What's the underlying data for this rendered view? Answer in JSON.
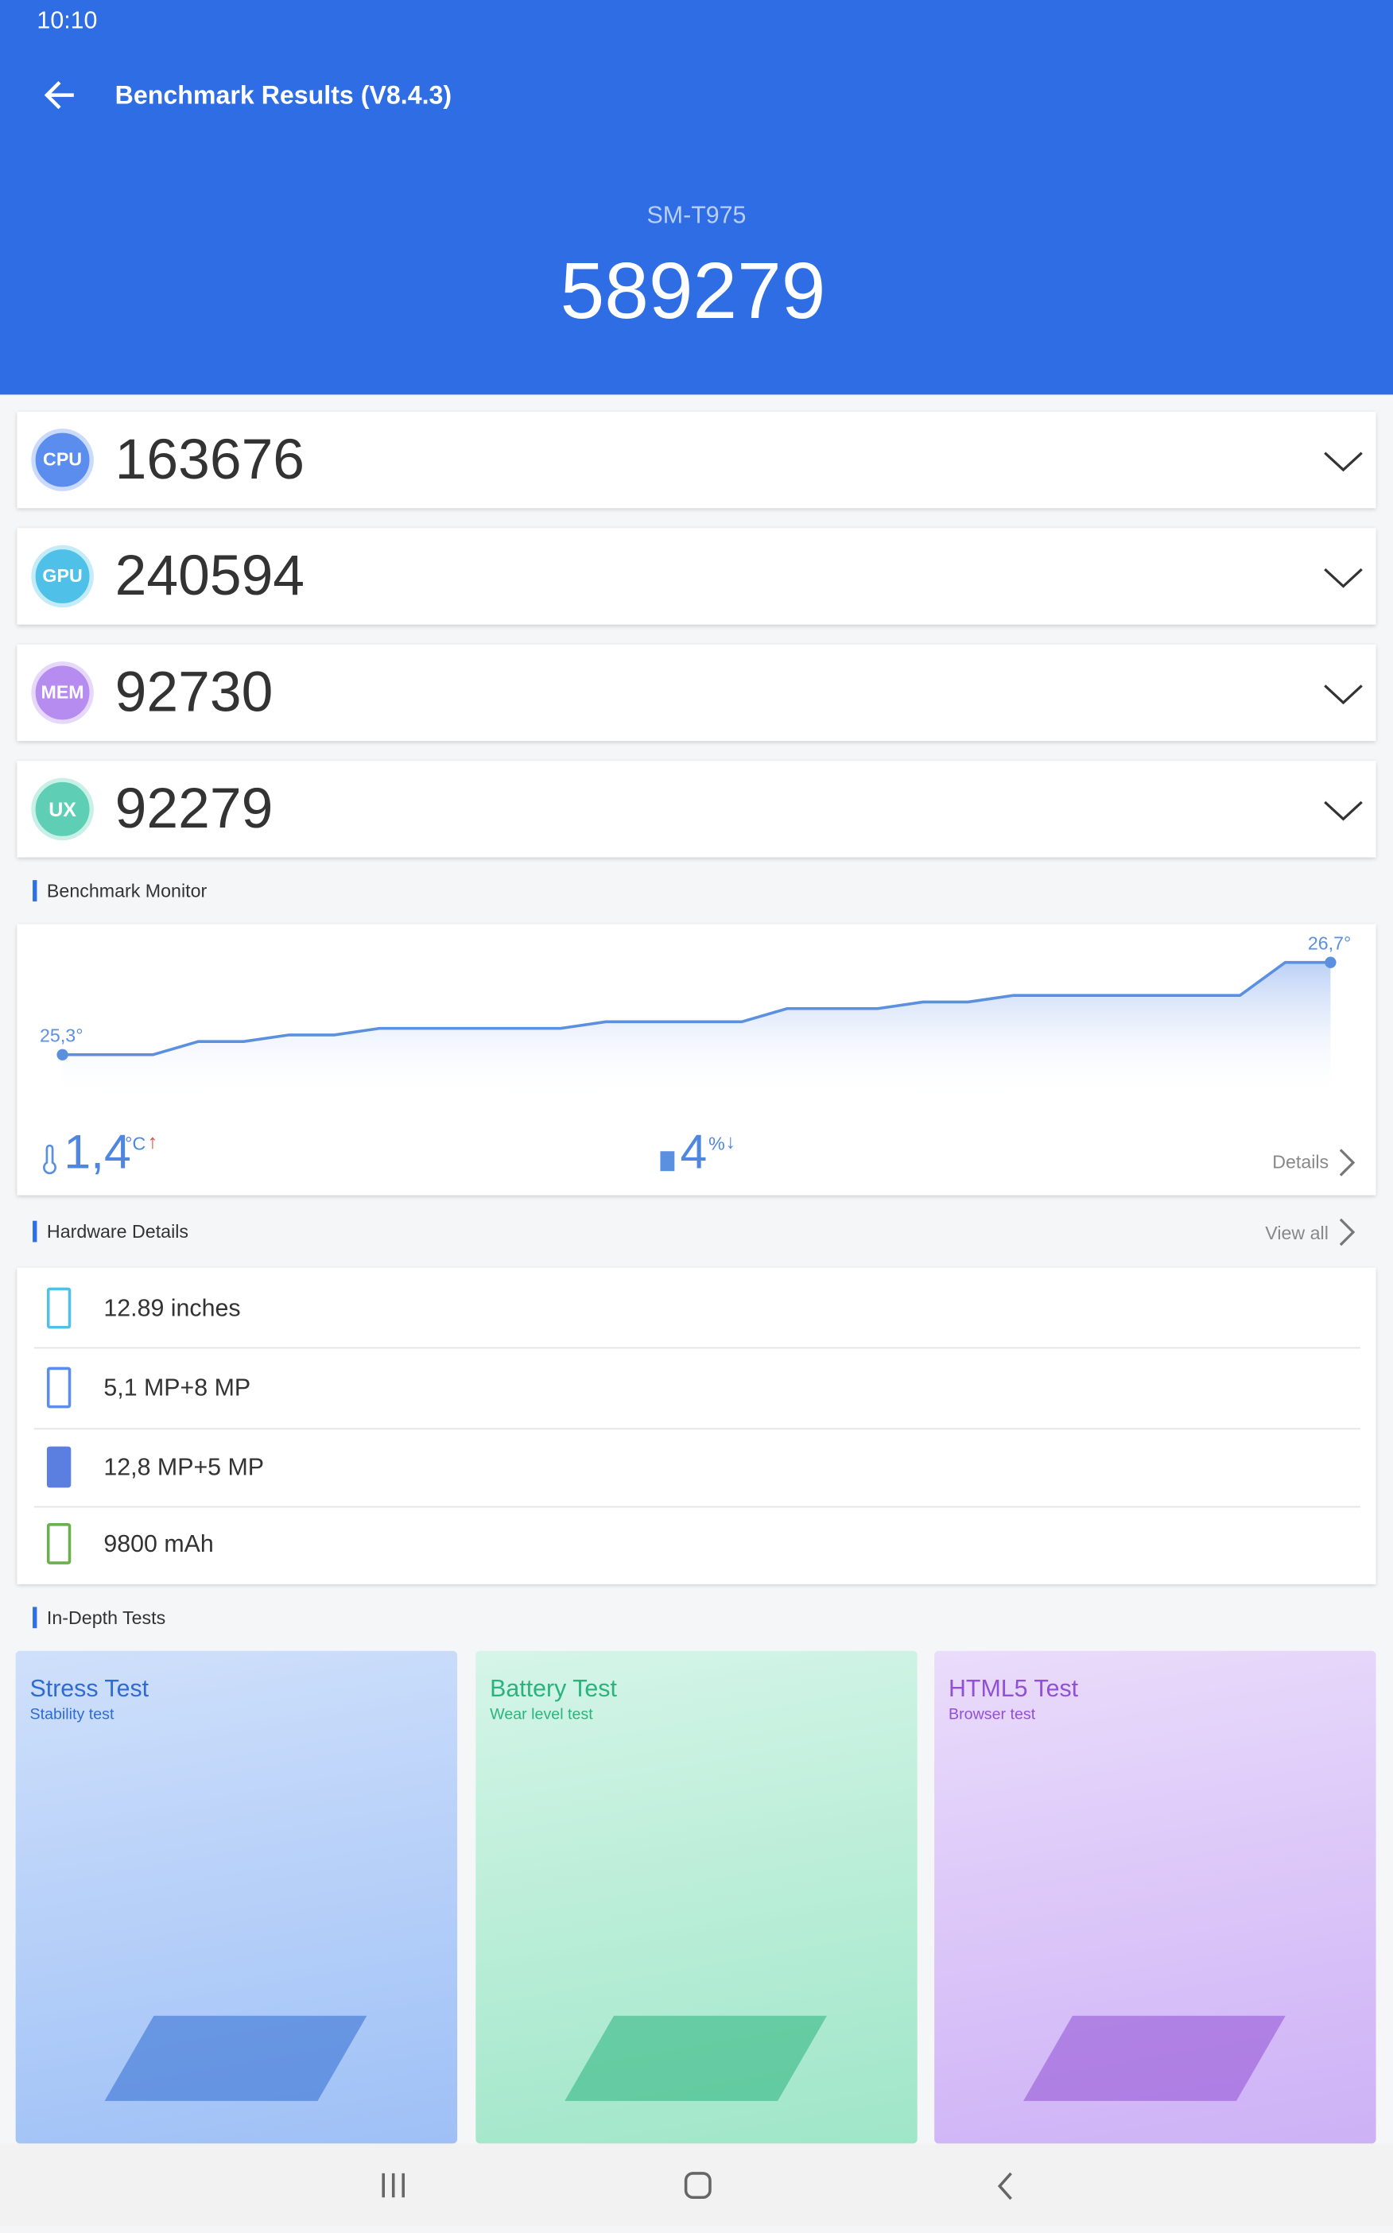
{
  "status_bar": {
    "time": "10:10"
  },
  "header": {
    "title": "Benchmark Results (V8.4.3)",
    "device": "SM-T975",
    "total_score": "589279"
  },
  "scores": [
    {
      "label": "CPU",
      "value": "163676"
    },
    {
      "label": "GPU",
      "value": "240594"
    },
    {
      "label": "MEM",
      "value": "92730"
    },
    {
      "label": "UX",
      "value": "92279"
    }
  ],
  "monitor": {
    "title": "Benchmark Monitor",
    "start_label": "25,3°",
    "end_label": "26,7°",
    "temperatures": [
      25.3,
      25.3,
      25.3,
      25.5,
      25.5,
      25.6,
      25.6,
      25.7,
      25.7,
      25.7,
      25.7,
      25.7,
      25.8,
      25.8,
      25.8,
      25.8,
      26.0,
      26.0,
      26.0,
      26.1,
      26.1,
      26.2,
      26.2,
      26.2,
      26.2,
      26.2,
      26.2,
      26.7,
      26.7
    ],
    "ylim": [
      25.3,
      26.7
    ],
    "temp_rise": "1,4",
    "temp_unit": "°C",
    "battery_drop": "4",
    "battery_unit": "%",
    "details": "Details"
  },
  "hardware": {
    "title": "Hardware Details",
    "view_all": "View all",
    "items": [
      "12.89 inches",
      "5,1 MP+8 MP",
      "12,8 MP+5 MP",
      "9800 mAh"
    ]
  },
  "tests": {
    "title": "In-Depth Tests",
    "cards": [
      {
        "title": "Stress Test",
        "subtitle": "Stability test"
      },
      {
        "title": "Battery Test",
        "subtitle": "Wear level test"
      },
      {
        "title": "HTML5 Test",
        "subtitle": "Browser test"
      }
    ]
  }
}
